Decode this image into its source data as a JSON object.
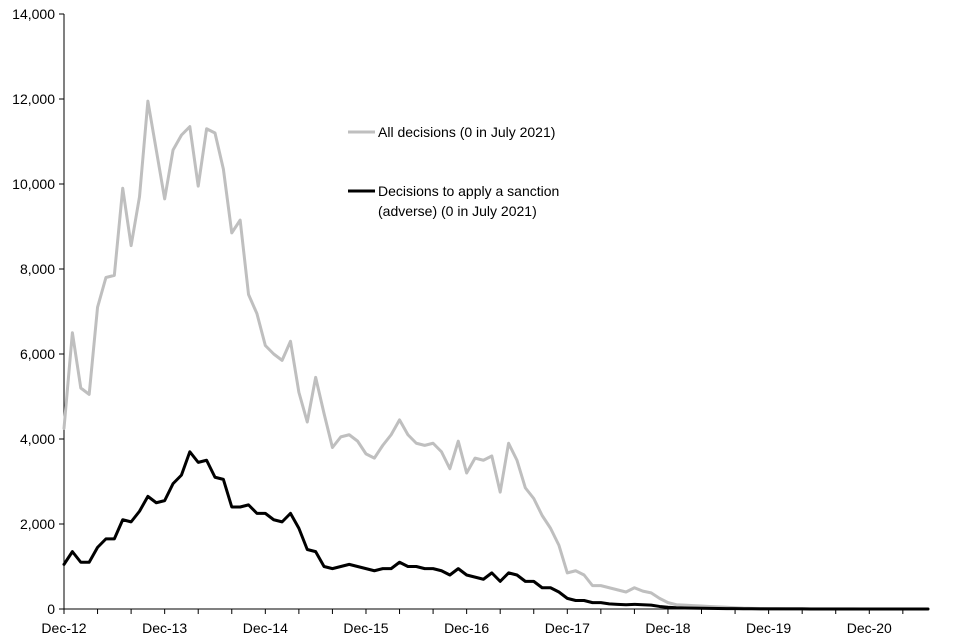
{
  "chart_data": {
    "type": "line",
    "title": "",
    "xlabel": "",
    "ylabel": "",
    "ylim": [
      0,
      14000
    ],
    "yticks": [
      0,
      2000,
      4000,
      6000,
      8000,
      10000,
      12000,
      14000
    ],
    "ytick_labels": [
      "0",
      "2,000",
      "4,000",
      "6,000",
      "8,000",
      "10,000",
      "12,000",
      "14,000"
    ],
    "xticks": [
      {
        "label": "Dec-12",
        "index": 0
      },
      {
        "label": "Dec-13",
        "index": 12
      },
      {
        "label": "Dec-14",
        "index": 24
      },
      {
        "label": "Dec-15",
        "index": 36
      },
      {
        "label": "Dec-16",
        "index": 48
      },
      {
        "label": "Dec-17",
        "index": 60
      },
      {
        "label": "Dec-18",
        "index": 72
      },
      {
        "label": "Dec-19",
        "index": 84
      },
      {
        "label": "Dec-20",
        "index": 96
      }
    ],
    "x_start": "Dec-12",
    "x_end": "Jul-21",
    "grid": false,
    "legend": "inside-center",
    "series": [
      {
        "name": "All decisions (0 in July 2021)",
        "color": "#bfbfbf",
        "values": [
          4250,
          6500,
          5200,
          5050,
          7100,
          7800,
          7850,
          9900,
          8550,
          9700,
          11950,
          10800,
          9650,
          10800,
          11150,
          11350,
          9950,
          11300,
          11200,
          10350,
          8850,
          9150,
          7400,
          6950,
          6200,
          6000,
          5850,
          6300,
          5100,
          4400,
          5450,
          4600,
          3800,
          4050,
          4100,
          3950,
          3650,
          3550,
          3850,
          4100,
          4450,
          4100,
          3900,
          3850,
          3900,
          3700,
          3300,
          3950,
          3200,
          3550,
          3500,
          3600,
          2750,
          3900,
          3500,
          2850,
          2600,
          2200,
          1900,
          1500,
          850,
          900,
          800,
          550,
          550,
          500,
          450,
          400,
          500,
          420,
          380,
          250,
          150,
          100,
          90,
          80,
          70,
          60,
          50,
          40,
          30,
          20,
          15,
          12,
          10,
          8,
          6,
          5,
          5,
          4,
          3,
          3,
          2,
          2,
          2,
          1,
          1,
          1,
          0,
          0,
          0,
          0,
          0,
          0
        ]
      },
      {
        "name": "Decisions to apply a sanction (adverse)   (0 in July 2021)",
        "name_lines": [
          "Decisions to apply a sanction",
          "(adverse)   (0 in July 2021)"
        ],
        "color": "#000000",
        "values": [
          1050,
          1350,
          1100,
          1100,
          1450,
          1650,
          1650,
          2100,
          2050,
          2300,
          2650,
          2500,
          2550,
          2950,
          3150,
          3700,
          3450,
          3500,
          3100,
          3050,
          2400,
          2400,
          2450,
          2250,
          2250,
          2100,
          2050,
          2250,
          1900,
          1400,
          1350,
          1000,
          950,
          1000,
          1050,
          1000,
          950,
          900,
          950,
          950,
          1100,
          1000,
          1000,
          950,
          950,
          900,
          800,
          950,
          800,
          750,
          700,
          850,
          650,
          850,
          800,
          650,
          650,
          500,
          500,
          400,
          250,
          200,
          200,
          150,
          150,
          120,
          110,
          100,
          110,
          100,
          90,
          60,
          40,
          30,
          25,
          20,
          18,
          15,
          12,
          10,
          8,
          6,
          5,
          4,
          3,
          3,
          2,
          2,
          2,
          1,
          1,
          1,
          1,
          0,
          0,
          0,
          0,
          0,
          0,
          0,
          0,
          0,
          0,
          0
        ]
      }
    ]
  }
}
